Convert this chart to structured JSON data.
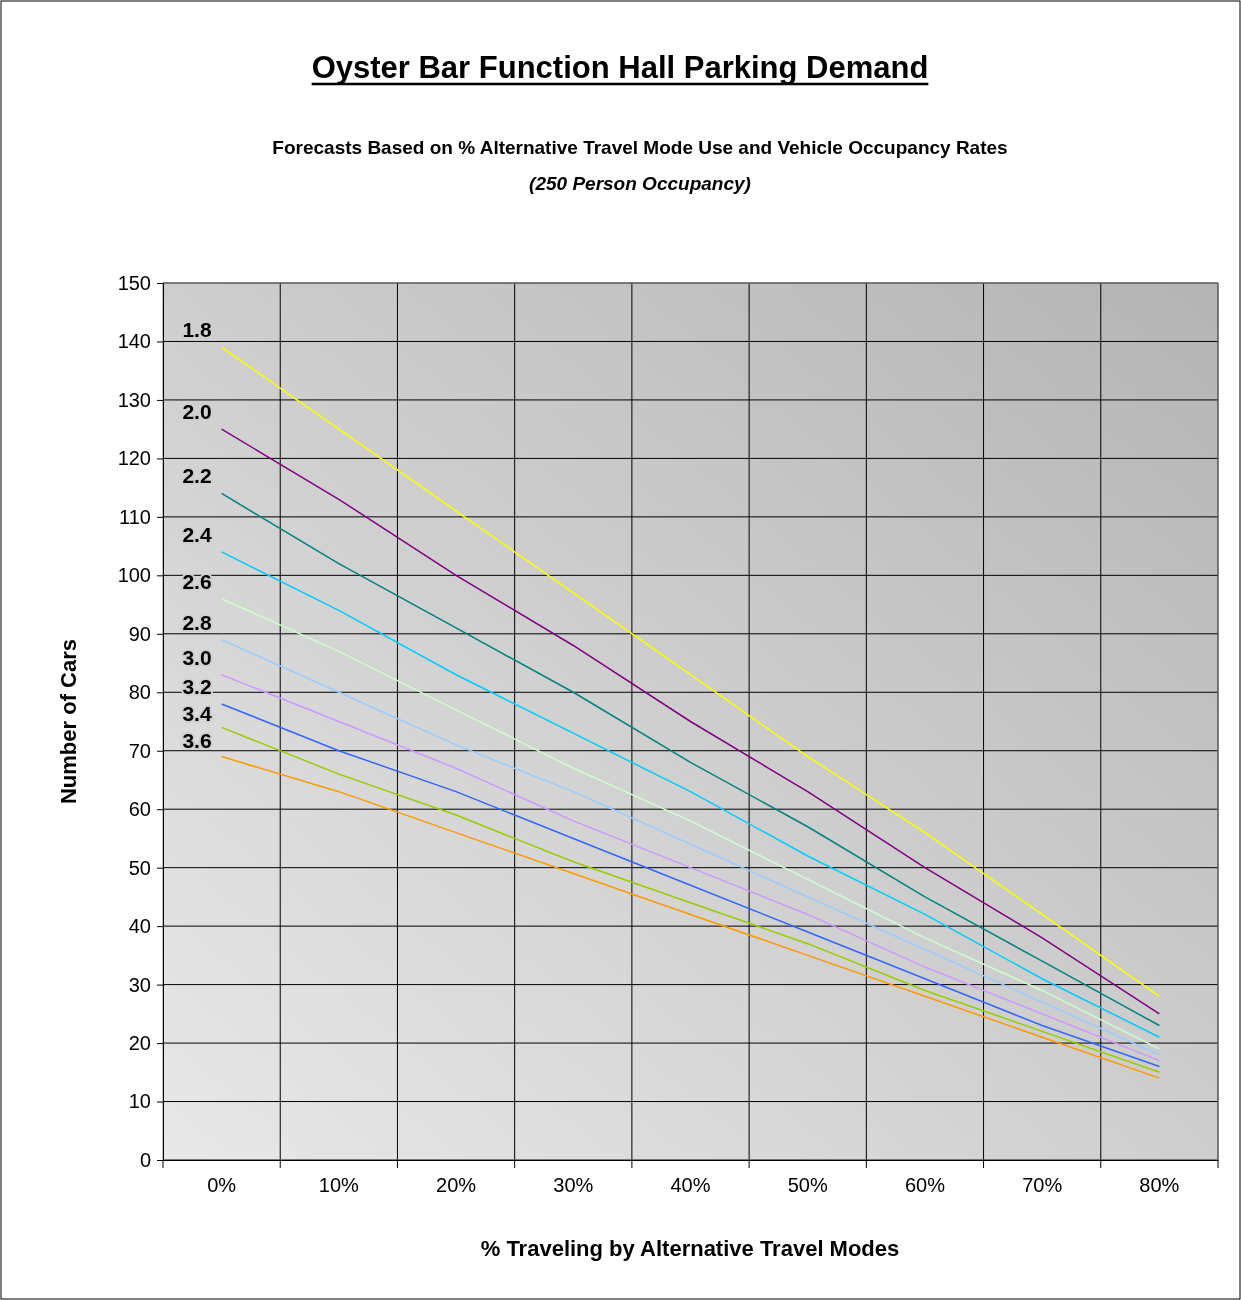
{
  "chart_data": {
    "type": "line",
    "title": "Oyster Bar Function Hall Parking Demand",
    "subtitle": "Forecasts Based on % Alternative Travel Mode Use and Vehicle Occupancy Rates",
    "annotations": [
      "(250 Person Occupancy)"
    ],
    "xlabel": "% Traveling by Alternative Travel Modes",
    "ylabel": "Number of Cars",
    "categories": [
      "0%",
      "10%",
      "20%",
      "30%",
      "40%",
      "50%",
      "60%",
      "70%",
      "80%"
    ],
    "ylim": [
      0,
      150
    ],
    "yticks": [
      0,
      10,
      20,
      30,
      40,
      50,
      60,
      70,
      80,
      90,
      100,
      110,
      120,
      130,
      140,
      150
    ],
    "grid": true,
    "marker": "none",
    "line_style": "solid",
    "series": [
      {
        "name": "1.8",
        "color": "#ffff00",
        "values": [
          139,
          125,
          111,
          97,
          83,
          69,
          56,
          42,
          28
        ]
      },
      {
        "name": "2.0",
        "color": "#800080",
        "values": [
          125,
          113,
          100,
          88,
          75,
          63,
          50,
          38,
          25
        ]
      },
      {
        "name": "2.2",
        "color": "#008080",
        "values": [
          114,
          102,
          91,
          80,
          68,
          57,
          45,
          34,
          23
        ]
      },
      {
        "name": "2.4",
        "color": "#00ccff",
        "values": [
          104,
          94,
          83,
          73,
          63,
          52,
          42,
          31,
          21
        ]
      },
      {
        "name": "2.6",
        "color": "#ccffcc",
        "values": [
          96,
          87,
          77,
          67,
          58,
          48,
          38,
          29,
          19
        ]
      },
      {
        "name": "2.8",
        "color": "#99ccff",
        "values": [
          89,
          80,
          71,
          63,
          54,
          45,
          36,
          27,
          18
        ]
      },
      {
        "name": "3.0",
        "color": "#cc99ff",
        "values": [
          83,
          75,
          67,
          58,
          50,
          42,
          33,
          25,
          17
        ]
      },
      {
        "name": "3.2",
        "color": "#3366ff",
        "values": [
          78,
          70,
          63,
          55,
          47,
          39,
          31,
          23,
          16
        ]
      },
      {
        "name": "3.4",
        "color": "#99cc00",
        "values": [
          74,
          66,
          59,
          51,
          44,
          37,
          29,
          22,
          15
        ]
      },
      {
        "name": "3.6",
        "color": "#ff9900",
        "values": [
          69,
          63,
          56,
          49,
          42,
          35,
          28,
          21,
          14
        ]
      }
    ]
  }
}
